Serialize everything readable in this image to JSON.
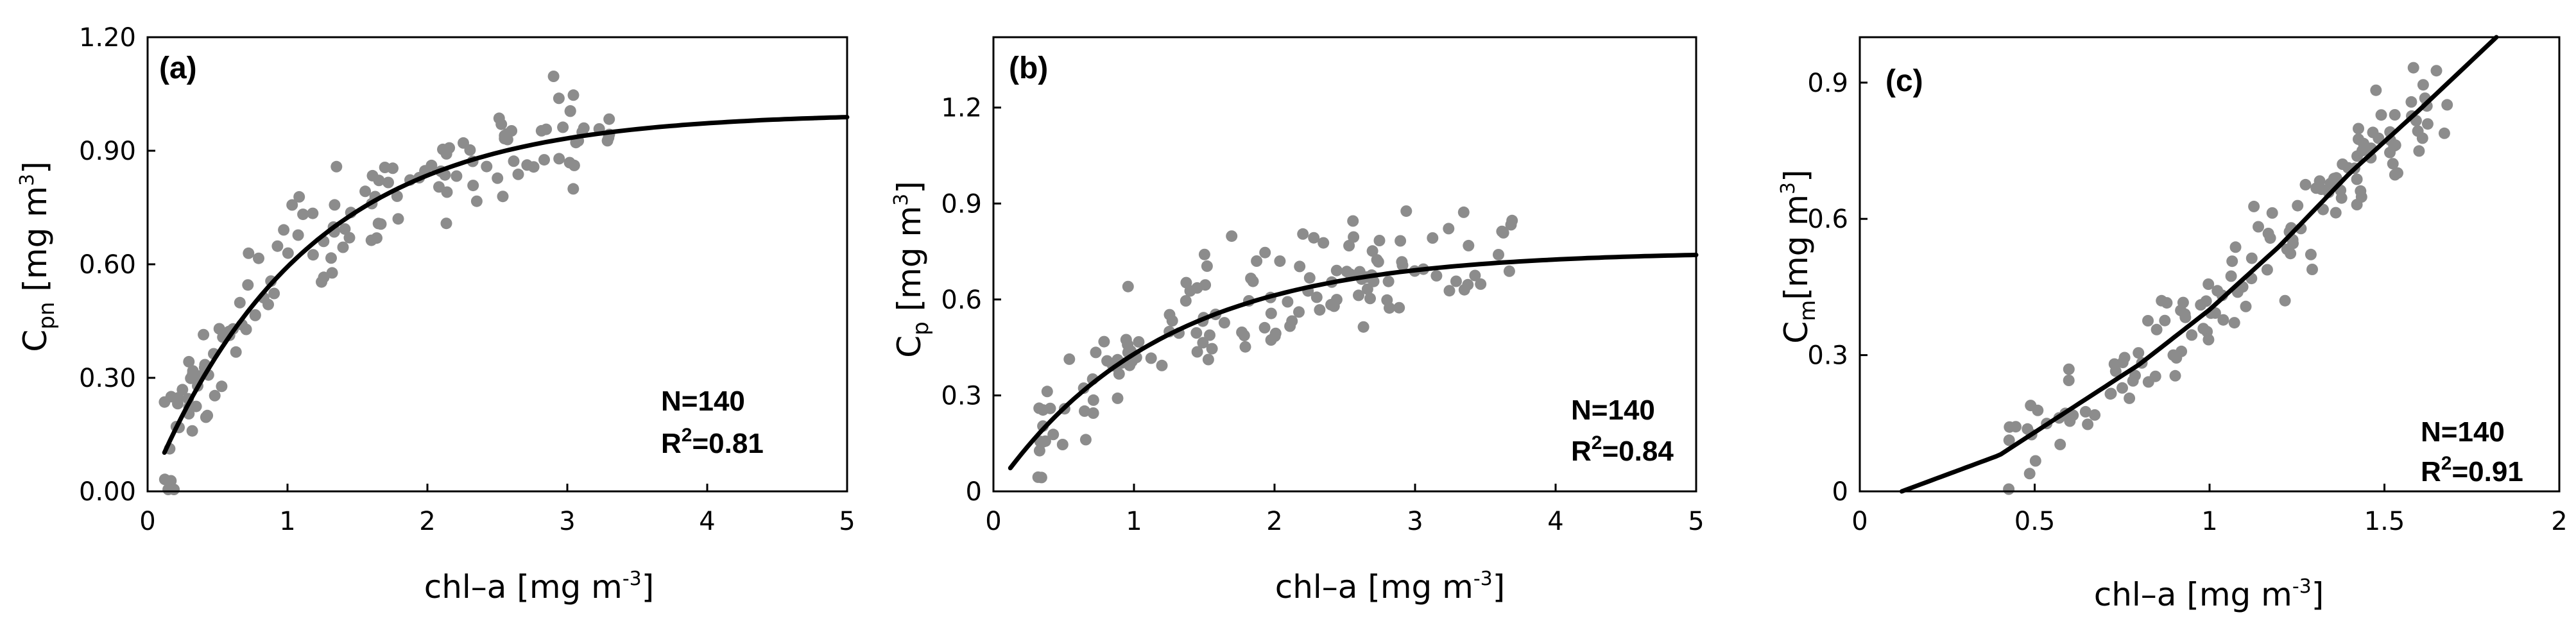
{
  "chart_data": [
    {
      "type": "scatter",
      "panel_label": "(a)",
      "xlabel": {
        "main": "chl–a [mg m",
        "sup": "-3",
        "close": "]"
      },
      "ylabel": {
        "main": "C",
        "sub": "pn",
        "rest": " [mg m",
        "sup": "3",
        "close": "]"
      },
      "x_ticks": [
        "0",
        "1",
        "2",
        "3",
        "4",
        "5"
      ],
      "y_ticks": [
        "0.00",
        "0.30",
        "0.60",
        "0.90",
        "1.20"
      ],
      "xlim": [
        0,
        5
      ],
      "ylim": [
        0,
        1.2
      ],
      "N_label": "N=140",
      "R2_label": {
        "pre": "R",
        "sup": "2",
        "post": "=0.81"
      },
      "fit": {
        "model": "a*(1-exp(-b*x))",
        "a": 1.0,
        "b": 0.9,
        "x_range": [
          0.12,
          5.0
        ]
      },
      "points_summary": {
        "count": 140,
        "x_range": [
          0.12,
          3.3
        ],
        "description": "grey scatter points around the saturating fit curve"
      }
    },
    {
      "type": "scatter",
      "panel_label": "(b)",
      "xlabel": {
        "main": "chl–a [mg m",
        "sup": "-3",
        "close": "]"
      },
      "ylabel": {
        "main": "C",
        "sub": "p",
        "rest": " [mg m",
        "sup": "3",
        "close": "]"
      },
      "x_ticks": [
        "0",
        "1",
        "2",
        "3",
        "4",
        "5"
      ],
      "y_ticks": [
        "0",
        "0.3",
        "0.6",
        "0.9",
        "1.2"
      ],
      "xlim": [
        0,
        5
      ],
      "ylim": [
        0,
        1.42
      ],
      "N_label": "N=140",
      "R2_label": {
        "pre": "R",
        "sup": "2",
        "post": "=0.84"
      },
      "fit": {
        "model": "a*(1-exp(-b*x))",
        "a": 0.75,
        "b": 0.85,
        "x_range": [
          0.12,
          5.0
        ]
      },
      "points_summary": {
        "count": 140,
        "x_range": [
          0.3,
          3.7
        ],
        "description": "grey scatter points around the saturating fit curve"
      }
    },
    {
      "type": "scatter",
      "panel_label": "(c)",
      "xlabel": {
        "main": "chl–a [mg m",
        "sup": "-3",
        "close": "]"
      },
      "ylabel": {
        "main": "C",
        "sub": "m",
        "rest": "[mg m",
        "sup": "3",
        "close": "]"
      },
      "x_ticks": [
        "0",
        "0.5",
        "1",
        "1.5",
        "2"
      ],
      "y_ticks": [
        "0",
        "0.3",
        "0.6",
        "0.9"
      ],
      "xlim": [
        0,
        2
      ],
      "ylim": [
        0,
        1.0
      ],
      "N_label": "N=140",
      "R2_label": {
        "pre": "R",
        "sup": "2",
        "post": "=0.91"
      },
      "fit": {
        "model": "polyline",
        "x": [
          0.12,
          0.4,
          0.6,
          0.8,
          1.0,
          1.2,
          1.4,
          1.6,
          1.82
        ],
        "y": [
          0.0,
          0.08,
          0.18,
          0.28,
          0.4,
          0.54,
          0.7,
          0.84,
          1.0
        ]
      },
      "points_summary": {
        "count": 140,
        "x_range": [
          0.42,
          1.7
        ],
        "description": "grey scatter points along the increasing fit curve"
      }
    }
  ]
}
